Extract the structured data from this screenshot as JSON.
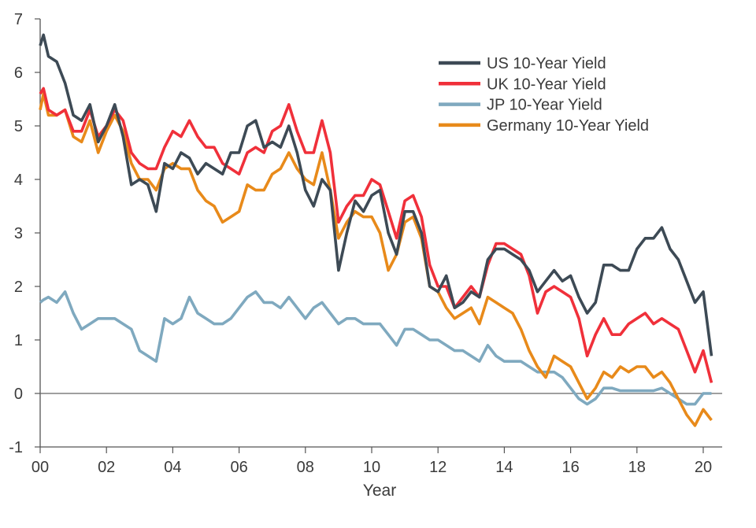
{
  "chart_data": {
    "type": "line",
    "title": "",
    "xlabel": "Year",
    "ylabel": "",
    "xlim": [
      2000,
      2020.5
    ],
    "ylim": [
      -1,
      7
    ],
    "x_ticks": [
      2000,
      2002,
      2004,
      2006,
      2008,
      2010,
      2012,
      2014,
      2016,
      2018,
      2020
    ],
    "x_tick_labels": [
      "00",
      "02",
      "04",
      "06",
      "08",
      "10",
      "12",
      "14",
      "16",
      "18",
      "20"
    ],
    "y_ticks": [
      -1,
      0,
      1,
      2,
      3,
      4,
      5,
      6,
      7
    ],
    "y_tick_labels": [
      "-1",
      "0",
      "1",
      "2",
      "3",
      "4",
      "5",
      "6",
      "7"
    ],
    "grid": false,
    "zero_line": true,
    "legend_position": "top-right",
    "x": [
      2000,
      2000.1,
      2000.25,
      2000.5,
      2000.75,
      2001,
      2001.25,
      2001.5,
      2001.75,
      2002,
      2002.25,
      2002.5,
      2002.75,
      2003,
      2003.25,
      2003.5,
      2003.75,
      2004,
      2004.25,
      2004.5,
      2004.75,
      2005,
      2005.25,
      2005.5,
      2005.75,
      2006,
      2006.25,
      2006.5,
      2006.75,
      2007,
      2007.25,
      2007.5,
      2007.75,
      2008,
      2008.25,
      2008.5,
      2008.75,
      2009,
      2009.25,
      2009.5,
      2009.75,
      2010,
      2010.25,
      2010.5,
      2010.75,
      2011,
      2011.25,
      2011.5,
      2011.75,
      2012,
      2012.25,
      2012.5,
      2012.75,
      2013,
      2013.25,
      2013.5,
      2013.75,
      2014,
      2014.25,
      2014.5,
      2014.75,
      2015,
      2015.25,
      2015.5,
      2015.75,
      2016,
      2016.25,
      2016.5,
      2016.75,
      2017,
      2017.25,
      2017.5,
      2017.75,
      2018,
      2018.25,
      2018.5,
      2018.75,
      2019,
      2019.25,
      2019.5,
      2019.75,
      2020,
      2020.25
    ],
    "series": [
      {
        "name": "US 10-Year Yield",
        "color": "#3d4a55",
        "values": [
          6.5,
          6.7,
          6.3,
          6.2,
          5.8,
          5.2,
          5.1,
          5.4,
          4.7,
          5.0,
          5.4,
          4.8,
          3.9,
          4.0,
          3.9,
          3.4,
          4.3,
          4.2,
          4.5,
          4.4,
          4.1,
          4.3,
          4.2,
          4.1,
          4.5,
          4.5,
          5.0,
          5.1,
          4.6,
          4.7,
          4.6,
          5.0,
          4.5,
          3.8,
          3.5,
          4.0,
          3.8,
          2.3,
          3.0,
          3.6,
          3.4,
          3.7,
          3.8,
          3.0,
          2.6,
          3.4,
          3.4,
          3.0,
          2.0,
          1.9,
          2.2,
          1.6,
          1.7,
          1.9,
          1.8,
          2.5,
          2.7,
          2.7,
          2.6,
          2.5,
          2.3,
          1.9,
          2.1,
          2.3,
          2.1,
          2.2,
          1.8,
          1.5,
          1.7,
          2.4,
          2.4,
          2.3,
          2.3,
          2.7,
          2.9,
          2.9,
          3.1,
          2.7,
          2.5,
          2.1,
          1.7,
          1.9,
          0.7
        ]
      },
      {
        "name": "UK 10-Year Yield",
        "color": "#f0303a",
        "values": [
          5.6,
          5.7,
          5.3,
          5.2,
          5.3,
          4.9,
          4.9,
          5.3,
          4.8,
          5.0,
          5.3,
          5.1,
          4.5,
          4.3,
          4.2,
          4.2,
          4.6,
          4.9,
          4.8,
          5.1,
          4.8,
          4.6,
          4.6,
          4.3,
          4.2,
          4.1,
          4.5,
          4.6,
          4.5,
          4.9,
          5.0,
          5.4,
          4.9,
          4.5,
          4.5,
          5.1,
          4.5,
          3.2,
          3.5,
          3.7,
          3.7,
          4.0,
          3.9,
          3.4,
          2.9,
          3.6,
          3.7,
          3.3,
          2.4,
          2.0,
          2.0,
          1.6,
          1.8,
          2.0,
          1.8,
          2.4,
          2.8,
          2.8,
          2.7,
          2.6,
          2.2,
          1.5,
          1.9,
          2.0,
          1.9,
          1.8,
          1.4,
          0.7,
          1.1,
          1.4,
          1.1,
          1.1,
          1.3,
          1.4,
          1.5,
          1.3,
          1.4,
          1.3,
          1.2,
          0.8,
          0.4,
          0.8,
          0.2
        ]
      },
      {
        "name": "JP 10-Year Yield",
        "color": "#7fa9bf",
        "values": [
          1.7,
          1.75,
          1.8,
          1.7,
          1.9,
          1.5,
          1.2,
          1.3,
          1.4,
          1.4,
          1.4,
          1.3,
          1.2,
          0.8,
          0.7,
          0.6,
          1.4,
          1.3,
          1.4,
          1.8,
          1.5,
          1.4,
          1.3,
          1.3,
          1.4,
          1.6,
          1.8,
          1.9,
          1.7,
          1.7,
          1.6,
          1.8,
          1.6,
          1.4,
          1.6,
          1.7,
          1.5,
          1.3,
          1.4,
          1.4,
          1.3,
          1.3,
          1.3,
          1.1,
          0.9,
          1.2,
          1.2,
          1.1,
          1.0,
          1.0,
          0.9,
          0.8,
          0.8,
          0.7,
          0.6,
          0.9,
          0.7,
          0.6,
          0.6,
          0.6,
          0.5,
          0.4,
          0.4,
          0.4,
          0.3,
          0.1,
          -0.1,
          -0.2,
          -0.1,
          0.1,
          0.1,
          0.05,
          0.05,
          0.05,
          0.05,
          0.05,
          0.1,
          0.0,
          -0.1,
          -0.2,
          -0.2,
          0.0,
          0.0
        ]
      },
      {
        "name": "Germany 10-Year Yield",
        "color": "#e88a1a",
        "values": [
          5.3,
          5.6,
          5.2,
          5.2,
          5.3,
          4.8,
          4.7,
          5.1,
          4.5,
          4.9,
          5.2,
          4.9,
          4.3,
          4.0,
          4.0,
          3.8,
          4.2,
          4.3,
          4.2,
          4.2,
          3.8,
          3.6,
          3.5,
          3.2,
          3.3,
          3.4,
          3.9,
          3.8,
          3.8,
          4.1,
          4.2,
          4.5,
          4.2,
          4.0,
          3.9,
          4.5,
          3.8,
          2.9,
          3.2,
          3.4,
          3.3,
          3.3,
          3.0,
          2.3,
          2.6,
          3.2,
          3.3,
          2.9,
          2.0,
          1.9,
          1.6,
          1.4,
          1.5,
          1.6,
          1.3,
          1.8,
          1.7,
          1.6,
          1.5,
          1.2,
          0.8,
          0.5,
          0.3,
          0.7,
          0.6,
          0.5,
          0.2,
          -0.1,
          0.1,
          0.4,
          0.3,
          0.5,
          0.4,
          0.5,
          0.5,
          0.3,
          0.4,
          0.2,
          -0.1,
          -0.4,
          -0.6,
          -0.3,
          -0.5
        ]
      }
    ]
  }
}
